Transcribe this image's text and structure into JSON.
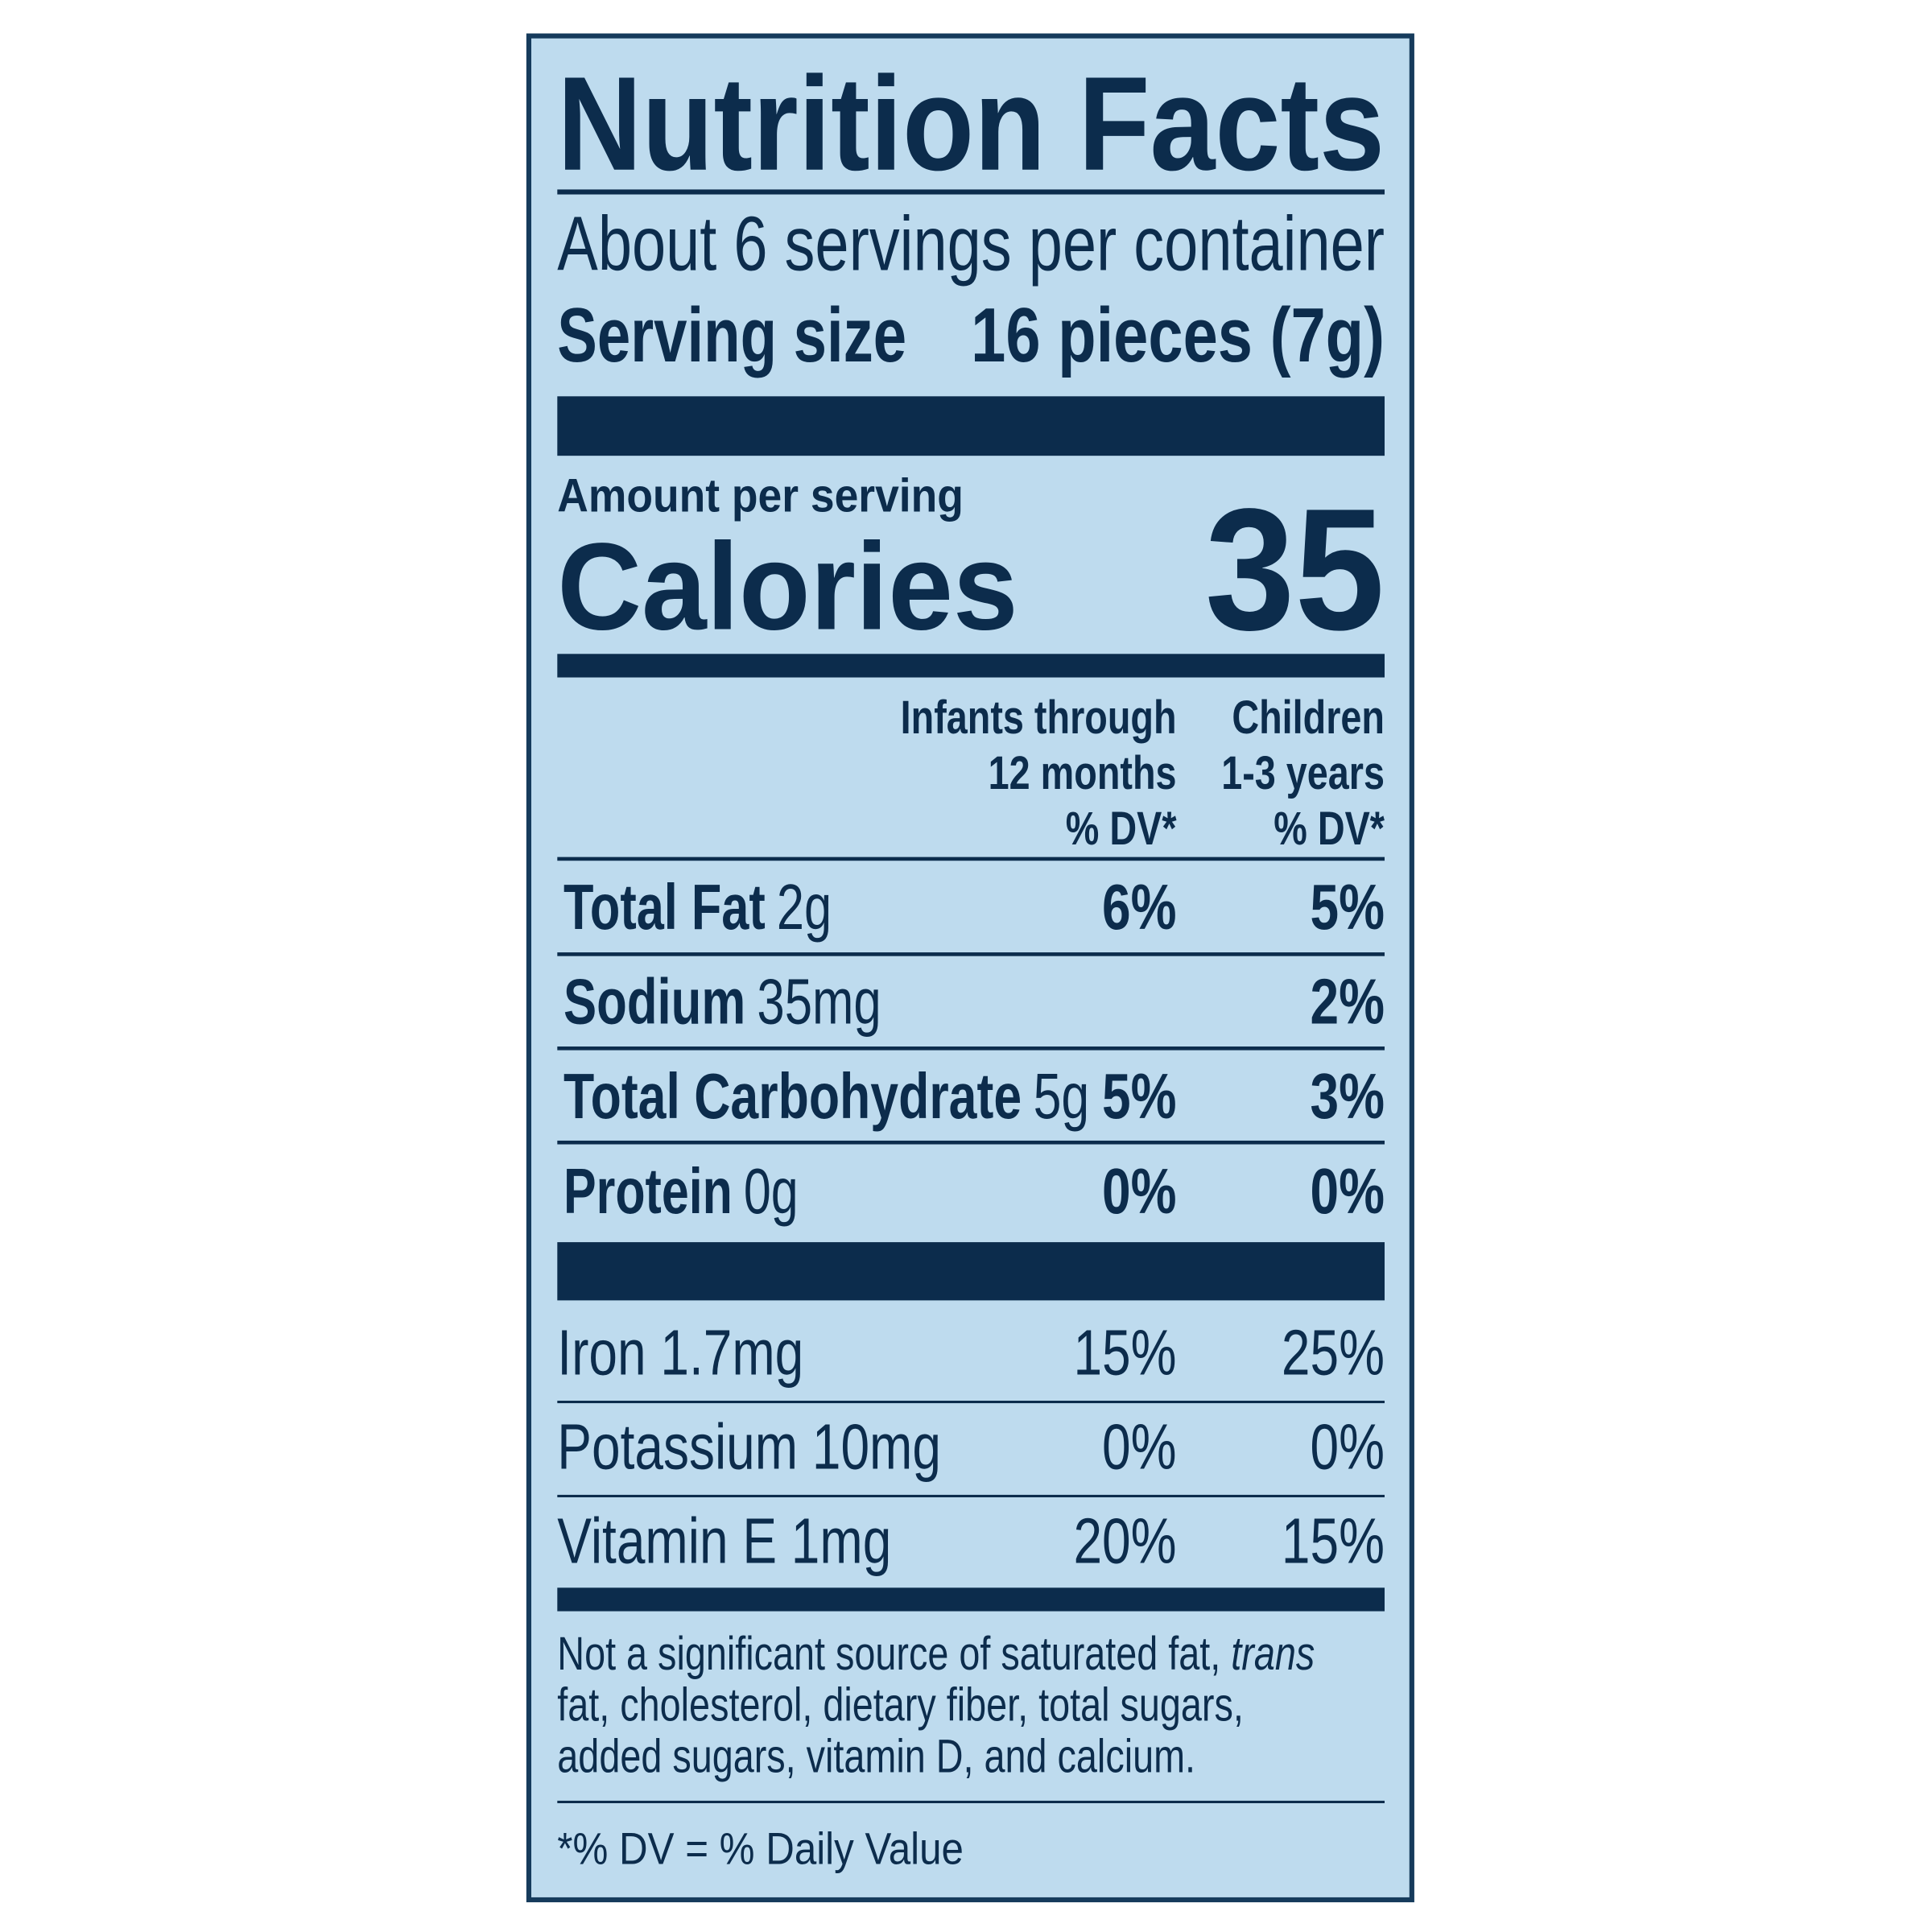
{
  "title": "Nutrition Facts",
  "servings_per_container": "About 6 servings per container",
  "serving_size": {
    "label": "Serving size",
    "value": "16 pieces (7g)"
  },
  "amount_per_serving": "Amount per serving",
  "calories": {
    "label": "Calories",
    "value": "35"
  },
  "column_headers": [
    [
      "Infants through",
      "12 months",
      "% DV*"
    ],
    [
      "Children",
      "1-3 years",
      "% DV*"
    ]
  ],
  "nutrients": [
    {
      "name": "Total Fat",
      "amount": "2g",
      "infants_dv": "6%",
      "children_dv": "5%"
    },
    {
      "name": "Sodium",
      "amount": "35mg",
      "children_dv": "2%"
    },
    {
      "name": "Total Carbohydrate",
      "amount": "5g",
      "infants_dv": "5%",
      "children_dv": "3%"
    },
    {
      "name": "Protein",
      "amount": "0g",
      "infants_dv": "0%",
      "children_dv": "0%"
    }
  ],
  "vitamins": [
    {
      "name": "Iron 1.7mg",
      "infants_dv": "15%",
      "children_dv": "25%"
    },
    {
      "name": "Potassium 10mg",
      "infants_dv": "0%",
      "children_dv": "0%"
    },
    {
      "name": "Vitamin E 1mg",
      "infants_dv": "20%",
      "children_dv": "15%"
    }
  ],
  "footnote": [
    {
      "text": "Not a significant source of saturated fat, ",
      "italic": "trans"
    },
    {
      "text": "fat, cholesterol, dietary fiber, total sugars,"
    },
    {
      "text": "added sugars, vitamin D, and calcium."
    }
  ],
  "dv_note": "*% DV = % Daily Value"
}
